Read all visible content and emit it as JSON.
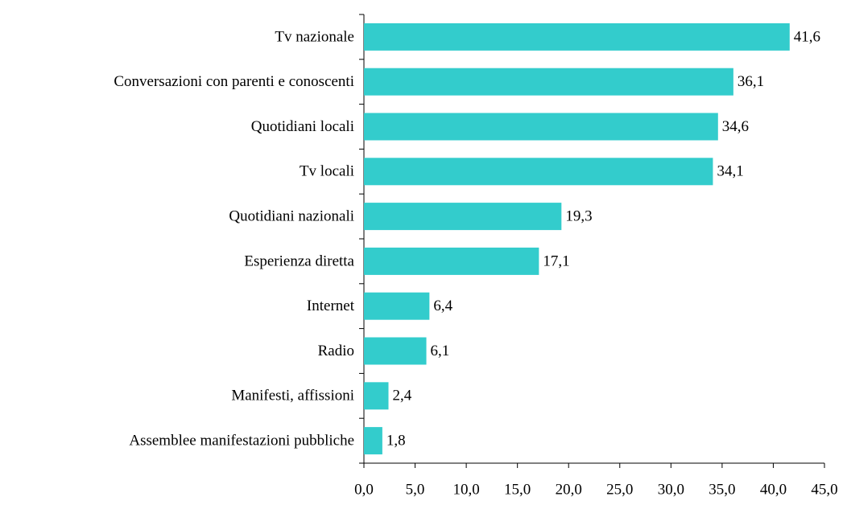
{
  "chart_data": {
    "type": "bar",
    "orientation": "horizontal",
    "categories": [
      "Tv nazionale",
      "Conversazioni con parenti e conoscenti",
      "Quotidiani locali",
      "Tv locali",
      "Quotidiani nazionali",
      "Esperienza diretta",
      "Internet",
      "Radio",
      "Manifesti, affissioni",
      "Assemblee manifestazioni pubbliche"
    ],
    "values": [
      41.6,
      36.1,
      34.6,
      34.1,
      19.3,
      17.1,
      6.4,
      6.1,
      2.4,
      1.8
    ],
    "value_labels": [
      "41,6",
      "36,1",
      "34,6",
      "34,1",
      "19,3",
      "17,1",
      "6,4",
      "6,1",
      "2,4",
      "1,8"
    ],
    "color": "#33cccc",
    "xlim": [
      0,
      45
    ],
    "xticks": [
      {
        "value": 0,
        "label": "0,0"
      },
      {
        "value": 5,
        "label": "5,0"
      },
      {
        "value": 10,
        "label": "10,0"
      },
      {
        "value": 15,
        "label": "15,0"
      },
      {
        "value": 20,
        "label": "20,0"
      },
      {
        "value": 25,
        "label": "25,0"
      },
      {
        "value": 30,
        "label": "30,0"
      },
      {
        "value": 35,
        "label": "35,0"
      },
      {
        "value": 40,
        "label": "40,0"
      },
      {
        "value": 45,
        "label": "45,0"
      }
    ],
    "grid": false
  }
}
